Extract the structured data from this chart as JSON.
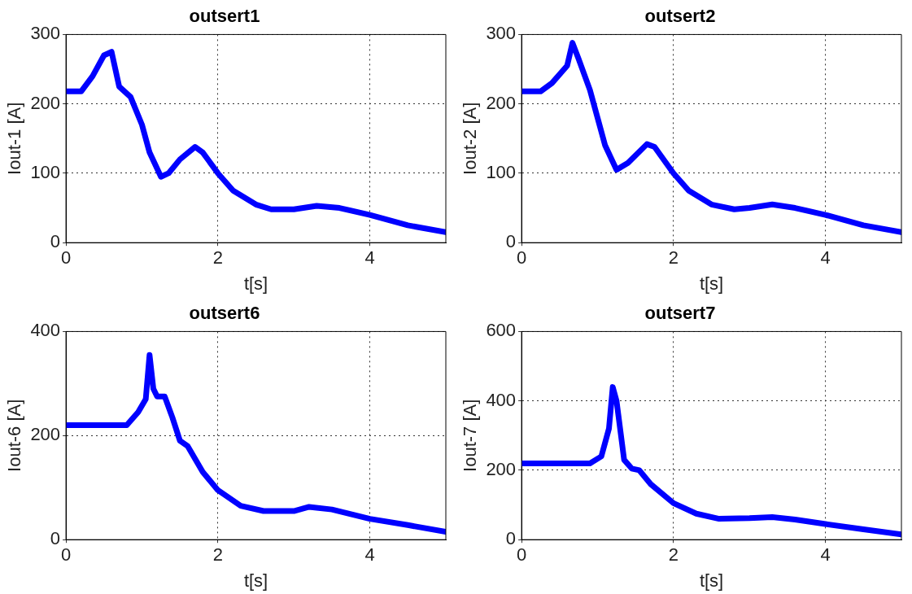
{
  "chart_data": [
    {
      "type": "line",
      "title": "outsert1",
      "xlabel": "t[s]",
      "ylabel": "Iout-1 [A]",
      "xlim": [
        0,
        5
      ],
      "xticks": [
        0,
        2,
        4
      ],
      "ylim": [
        0,
        300
      ],
      "yticks": [
        0,
        100,
        200,
        300
      ],
      "grid": true,
      "series": [
        {
          "color": "#0000ff",
          "x": [
            0,
            0.2,
            0.35,
            0.5,
            0.6,
            0.65,
            0.7,
            0.85,
            1.0,
            1.1,
            1.25,
            1.35,
            1.5,
            1.7,
            1.8,
            2.0,
            2.2,
            2.5,
            2.7,
            3.0,
            3.3,
            3.6,
            4.0,
            4.5,
            5
          ],
          "values": [
            218,
            218,
            240,
            270,
            275,
            250,
            225,
            210,
            170,
            130,
            95,
            100,
            120,
            138,
            130,
            100,
            75,
            55,
            48,
            48,
            53,
            50,
            40,
            25,
            15
          ]
        }
      ]
    },
    {
      "type": "line",
      "title": "outsert2",
      "xlabel": "t[s]",
      "ylabel": "Iout-2 [A]",
      "xlim": [
        0,
        5
      ],
      "xticks": [
        0,
        2,
        4
      ],
      "ylim": [
        0,
        300
      ],
      "yticks": [
        0,
        100,
        200,
        300
      ],
      "grid": true,
      "series": [
        {
          "color": "#0000ff",
          "x": [
            0,
            0.25,
            0.4,
            0.6,
            0.67,
            0.75,
            0.9,
            1.0,
            1.1,
            1.25,
            1.4,
            1.65,
            1.75,
            2.0,
            2.2,
            2.5,
            2.8,
            3.0,
            3.3,
            3.6,
            4.0,
            4.5,
            5
          ],
          "values": [
            218,
            218,
            230,
            255,
            288,
            265,
            220,
            180,
            140,
            105,
            115,
            142,
            138,
            100,
            75,
            55,
            48,
            50,
            55,
            50,
            40,
            25,
            15
          ]
        }
      ]
    },
    {
      "type": "line",
      "title": "outsert6",
      "xlabel": "t[s]",
      "ylabel": "Iout-6 [A]",
      "xlim": [
        0,
        5
      ],
      "xticks": [
        0,
        2,
        4
      ],
      "ylim": [
        0,
        400
      ],
      "yticks": [
        0,
        200,
        400
      ],
      "grid": true,
      "series": [
        {
          "color": "#0000ff",
          "x": [
            0,
            0.8,
            0.95,
            1.05,
            1.1,
            1.15,
            1.2,
            1.3,
            1.4,
            1.5,
            1.6,
            1.8,
            2.0,
            2.3,
            2.6,
            3.0,
            3.2,
            3.5,
            4.0,
            4.5,
            5
          ],
          "values": [
            220,
            220,
            245,
            270,
            355,
            290,
            275,
            275,
            235,
            190,
            180,
            130,
            95,
            65,
            55,
            55,
            63,
            58,
            40,
            28,
            15
          ]
        }
      ]
    },
    {
      "type": "line",
      "title": "outsert7",
      "xlabel": "t[s]",
      "ylabel": "Iout-7 [A]",
      "xlim": [
        0,
        5
      ],
      "xticks": [
        0,
        2,
        4
      ],
      "ylim": [
        0,
        600
      ],
      "yticks": [
        0,
        200,
        400,
        600
      ],
      "grid": true,
      "series": [
        {
          "color": "#0000ff",
          "x": [
            0,
            0.9,
            1.05,
            1.15,
            1.2,
            1.25,
            1.35,
            1.45,
            1.55,
            1.7,
            2.0,
            2.3,
            2.6,
            3.0,
            3.3,
            3.6,
            4.0,
            4.5,
            5
          ],
          "values": [
            220,
            220,
            240,
            320,
            440,
            400,
            230,
            205,
            200,
            160,
            105,
            75,
            60,
            62,
            65,
            58,
            45,
            30,
            15
          ]
        }
      ]
    }
  ]
}
